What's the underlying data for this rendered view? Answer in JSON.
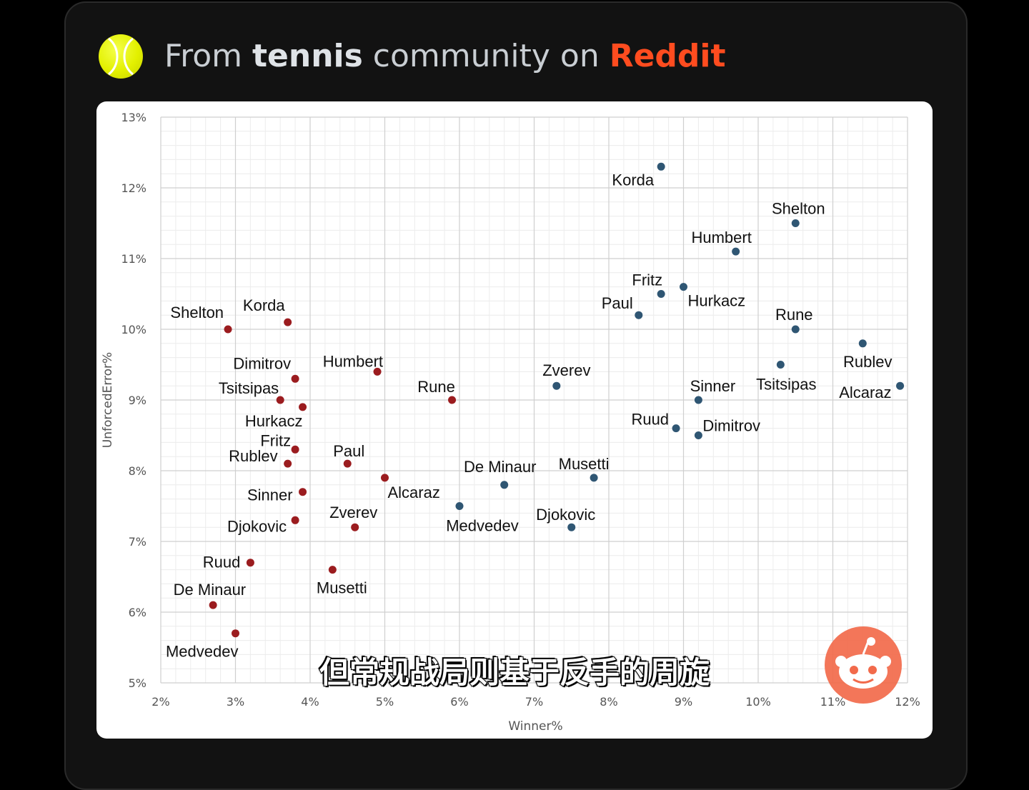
{
  "header": {
    "prefix": "From ",
    "bold": "tennis",
    "middle": " community on ",
    "brand": "Reddit",
    "brand_color": "#ff4c1f"
  },
  "subtitle": "但常规战局则基于反手的周旋",
  "icons": {
    "left": "tennis-ball-icon",
    "corner": "reddit-snoo-icon"
  },
  "chart_data": {
    "type": "scatter",
    "xlabel": "Winner%",
    "ylabel": "UnforcedError%",
    "xlim": [
      2,
      12
    ],
    "ylim": [
      5,
      13
    ],
    "x_ticks": [
      "2%",
      "3%",
      "4%",
      "5%",
      "6%",
      "7%",
      "8%",
      "9%",
      "10%",
      "11%",
      "12%"
    ],
    "y_ticks": [
      "5%",
      "6%",
      "7%",
      "8%",
      "9%",
      "10%",
      "11%",
      "12%",
      "13%"
    ],
    "grid": true,
    "series": [
      {
        "color": "#9b1c1f",
        "points": [
          {
            "label": "Shelton",
            "x": 2.9,
            "y": 10.0
          },
          {
            "label": "Korda",
            "x": 3.7,
            "y": 10.1
          },
          {
            "label": "Dimitrov",
            "x": 3.8,
            "y": 9.3
          },
          {
            "label": "Tsitsipas",
            "x": 3.6,
            "y": 9.0
          },
          {
            "label": "Hurkacz",
            "x": 3.9,
            "y": 8.9
          },
          {
            "label": "Fritz",
            "x": 3.8,
            "y": 8.3
          },
          {
            "label": "Rublev",
            "x": 3.7,
            "y": 8.1
          },
          {
            "label": "Sinner",
            "x": 3.9,
            "y": 7.7
          },
          {
            "label": "Djokovic",
            "x": 3.8,
            "y": 7.3
          },
          {
            "label": "Ruud",
            "x": 3.2,
            "y": 6.7
          },
          {
            "label": "De Minaur",
            "x": 2.7,
            "y": 6.1
          },
          {
            "label": "Medvedev",
            "x": 3.0,
            "y": 5.7
          },
          {
            "label": "Humbert",
            "x": 4.9,
            "y": 9.4
          },
          {
            "label": "Paul",
            "x": 4.5,
            "y": 8.1
          },
          {
            "label": "Alcaraz",
            "x": 5.0,
            "y": 7.9
          },
          {
            "label": "Zverev",
            "x": 4.6,
            "y": 7.2
          },
          {
            "label": "Musetti",
            "x": 4.3,
            "y": 6.6
          },
          {
            "label": "Rune",
            "x": 5.9,
            "y": 9.0
          }
        ]
      },
      {
        "color": "#2f5673",
        "points": [
          {
            "label": "Korda",
            "x": 8.7,
            "y": 12.3
          },
          {
            "label": "Shelton",
            "x": 10.5,
            "y": 11.5
          },
          {
            "label": "Humbert",
            "x": 9.7,
            "y": 11.1
          },
          {
            "label": "Fritz",
            "x": 8.7,
            "y": 10.5
          },
          {
            "label": "Hurkacz",
            "x": 9.0,
            "y": 10.6
          },
          {
            "label": "Paul",
            "x": 8.4,
            "y": 10.2
          },
          {
            "label": "Rune",
            "x": 10.5,
            "y": 10.0
          },
          {
            "label": "Rublev",
            "x": 11.4,
            "y": 9.8
          },
          {
            "label": "Tsitsipas",
            "x": 10.3,
            "y": 9.5
          },
          {
            "label": "Alcaraz",
            "x": 11.9,
            "y": 9.2
          },
          {
            "label": "Zverev",
            "x": 7.3,
            "y": 9.2
          },
          {
            "label": "Sinner",
            "x": 9.2,
            "y": 9.0
          },
          {
            "label": "Ruud",
            "x": 8.9,
            "y": 8.6
          },
          {
            "label": "Dimitrov",
            "x": 9.2,
            "y": 8.5
          },
          {
            "label": "De Minaur",
            "x": 6.6,
            "y": 7.8
          },
          {
            "label": "Musetti",
            "x": 7.8,
            "y": 7.9
          },
          {
            "label": "Medvedev",
            "x": 6.0,
            "y": 7.5
          },
          {
            "label": "Djokovic",
            "x": 7.5,
            "y": 7.2
          }
        ]
      }
    ]
  }
}
